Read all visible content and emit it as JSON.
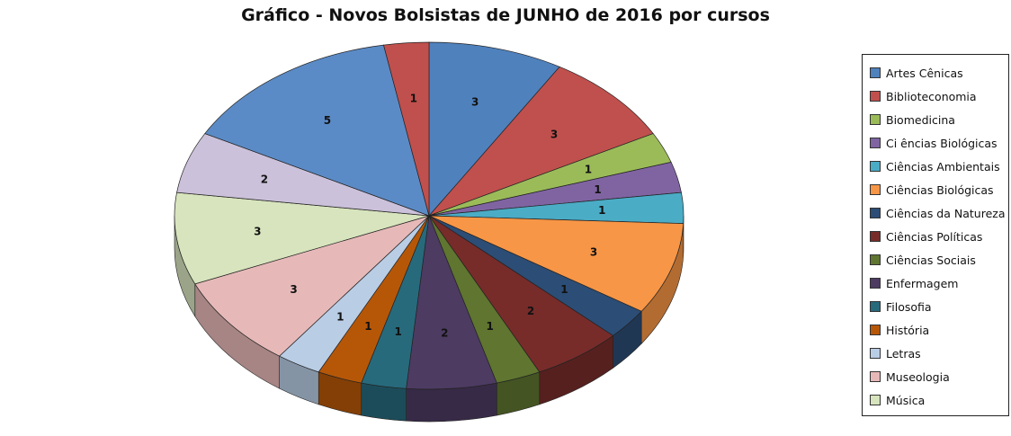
{
  "chart_data": {
    "type": "pie",
    "style": "3d",
    "title": "Gráfico - Novos Bolsistas de JUNHO de 2016 por cursos",
    "legend_position": "right",
    "categories": [
      "Artes Cênicas",
      "Biblioteconomia",
      "Biomedicina",
      "Ci ências Biológicas",
      "Ciências Ambientais",
      "Ciências Biológicas",
      "Ciências da Natureza",
      "Ciências Políticas",
      "Ciências Sociais",
      "Enfermagem",
      "Filosofia",
      "História",
      "Letras",
      "Museologia",
      "Música",
      "",
      "",
      ""
    ],
    "values": [
      3,
      3,
      1,
      1,
      1,
      3,
      1,
      2,
      1,
      2,
      1,
      1,
      1,
      3,
      3,
      2,
      5,
      1
    ],
    "colors": [
      "#4F81BD",
      "#C0504D",
      "#9BBB59",
      "#8064A2",
      "#4BACC6",
      "#F79646",
      "#2C4D75",
      "#772C2A",
      "#5F7530",
      "#4D3B62",
      "#276A7C",
      "#B65708",
      "#B9CDE5",
      "#E6B9B8",
      "#D7E4BD",
      "#CCC1DA",
      "#5B8BC6",
      "#C0504D"
    ]
  }
}
